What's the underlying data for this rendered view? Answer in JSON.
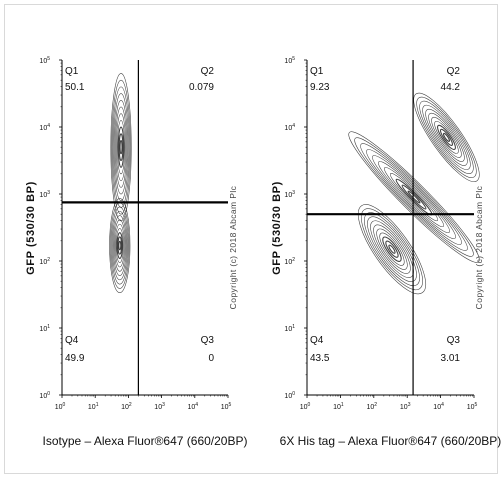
{
  "chart_data": [
    {
      "type": "contour",
      "xlabel": "Isotype – Alexa Fluor®647 (660/20BP)",
      "ylabel": "GFP (530/30 BP)",
      "x_scale": "log",
      "y_scale": "log",
      "xlim": [
        1,
        100000
      ],
      "ylim": [
        1,
        100000
      ],
      "x_ticks": [
        "10",
        "10",
        "10",
        "10",
        "10",
        "10"
      ],
      "x_tick_exp": [
        "0",
        "1",
        "2",
        "3",
        "4",
        "5"
      ],
      "y_ticks": [
        "10",
        "10",
        "10",
        "10",
        "10",
        "10"
      ],
      "y_tick_exp": [
        "0",
        "1",
        "2",
        "3",
        "4",
        "5"
      ],
      "gate_x": 200,
      "gate_y": 750,
      "quadrants": [
        {
          "label": "Q1",
          "value": "50.1"
        },
        {
          "label": "Q2",
          "value": "0.079"
        },
        {
          "label": "Q3",
          "value": "0"
        },
        {
          "label": "Q4",
          "value": "49.9"
        }
      ],
      "populations": [
        {
          "x": 60,
          "y": 5000,
          "sx": 0.14,
          "sy": 0.5,
          "rot": 0
        },
        {
          "x": 55,
          "y": 170,
          "sx": 0.14,
          "sy": 0.32,
          "rot": 0
        }
      ]
    },
    {
      "type": "contour",
      "xlabel": "6X His tag – Alexa Fluor®647 (660/20BP)",
      "ylabel": "GFP (530/30 BP)",
      "x_scale": "log",
      "y_scale": "log",
      "xlim": [
        1,
        100000
      ],
      "ylim": [
        1,
        100000
      ],
      "x_ticks": [
        "10",
        "10",
        "10",
        "10",
        "10",
        "10"
      ],
      "x_tick_exp": [
        "0",
        "1",
        "2",
        "3",
        "4",
        "5"
      ],
      "y_ticks": [
        "10",
        "10",
        "10",
        "10",
        "10",
        "10"
      ],
      "y_tick_exp": [
        "0",
        "1",
        "2",
        "3",
        "4",
        "5"
      ],
      "gate_x": 1500,
      "gate_y": 500,
      "quadrants": [
        {
          "label": "Q1",
          "value": "9.23"
        },
        {
          "label": "Q2",
          "value": "44.2"
        },
        {
          "label": "Q3",
          "value": "3.01"
        },
        {
          "label": "Q4",
          "value": "43.5"
        }
      ],
      "populations": [
        {
          "x": 350,
          "y": 150,
          "sx": 0.24,
          "sy": 0.36,
          "rot": 35
        },
        {
          "x": 1600,
          "y": 900,
          "sx": 0.18,
          "sy": 0.62,
          "rot": 45
        },
        {
          "x": 15000,
          "y": 7000,
          "sx": 0.2,
          "sy": 0.36,
          "rot": 35
        }
      ]
    }
  ],
  "copyright": "Copyright (c) 2018 Abcam Plc",
  "colors": {
    "contour": "#222222",
    "gate": "#000000",
    "axis": "#000000"
  }
}
